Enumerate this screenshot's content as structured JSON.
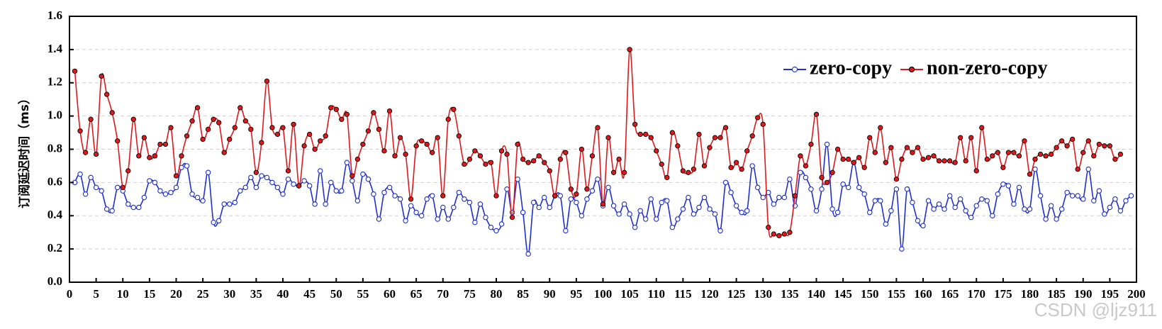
{
  "chart_data": {
    "type": "line",
    "ylabel": "订阅延迟时间（ms）",
    "xlabel": "",
    "xlim": [
      0,
      200
    ],
    "ylim": [
      0.0,
      1.6
    ],
    "xticks": [
      0,
      5,
      10,
      15,
      20,
      25,
      30,
      35,
      40,
      45,
      50,
      55,
      60,
      65,
      70,
      75,
      80,
      85,
      90,
      95,
      100,
      105,
      110,
      115,
      120,
      125,
      130,
      135,
      140,
      145,
      150,
      155,
      160,
      165,
      170,
      175,
      180,
      185,
      190,
      195,
      200
    ],
    "yticks": [
      "0.0",
      "0.2",
      "0.4",
      "0.6",
      "0.8",
      "1.0",
      "1.2",
      "1.4",
      "1.6"
    ],
    "grid": "horizontal dashed",
    "legend_position": "top-right",
    "series": [
      {
        "name": "zero-copy",
        "color": "#1f2fd1",
        "marker": "open-circle",
        "values": [
          0.6,
          0.65,
          0.53,
          0.63,
          0.57,
          0.55,
          0.44,
          0.43,
          0.57,
          0.55,
          0.47,
          0.45,
          0.45,
          0.51,
          0.61,
          0.6,
          0.55,
          0.53,
          0.54,
          0.57,
          0.69,
          0.7,
          0.53,
          0.51,
          0.49,
          0.66,
          0.36,
          0.37,
          0.47,
          0.47,
          0.48,
          0.55,
          0.57,
          0.63,
          0.57,
          0.64,
          0.63,
          0.6,
          0.57,
          0.53,
          0.62,
          0.59,
          0.58,
          0.61,
          0.58,
          0.47,
          0.67,
          0.47,
          0.6,
          0.55,
          0.55,
          0.72,
          0.61,
          0.49,
          0.65,
          0.62,
          0.53,
          0.38,
          0.54,
          0.57,
          0.52,
          0.5,
          0.37,
          0.46,
          0.42,
          0.4,
          0.5,
          0.52,
          0.38,
          0.45,
          0.38,
          0.45,
          0.54,
          0.5,
          0.48,
          0.36,
          0.47,
          0.39,
          0.33,
          0.31,
          0.35,
          0.56,
          0.42,
          0.62,
          0.42,
          0.17,
          0.48,
          0.45,
          0.51,
          0.45,
          0.52,
          0.52,
          0.31,
          0.5,
          0.48,
          0.4,
          0.5,
          0.55,
          0.62,
          0.46,
          0.57,
          0.46,
          0.41,
          0.47,
          0.41,
          0.33,
          0.43,
          0.38,
          0.5,
          0.38,
          0.48,
          0.49,
          0.33,
          0.38,
          0.44,
          0.51,
          0.41,
          0.45,
          0.51,
          0.44,
          0.41,
          0.31,
          0.6,
          0.54,
          0.46,
          0.42,
          0.43,
          0.7,
          0.57,
          0.51,
          0.54,
          0.47,
          0.51,
          0.51,
          0.62,
          0.46,
          0.66,
          0.63,
          0.56,
          0.43,
          0.56,
          0.83,
          0.44,
          0.42,
          0.59,
          0.57,
          0.72,
          0.57,
          0.53,
          0.42,
          0.49,
          0.49,
          0.35,
          0.43,
          0.56,
          0.2,
          0.56,
          0.48,
          0.37,
          0.34,
          0.49,
          0.44,
          0.47,
          0.44,
          0.52,
          0.45,
          0.5,
          0.43,
          0.39,
          0.46,
          0.5,
          0.49,
          0.4,
          0.53,
          0.59,
          0.58,
          0.47,
          0.57,
          0.44,
          0.44,
          0.68,
          0.52,
          0.38,
          0.46,
          0.38,
          0.44,
          0.54,
          0.52,
          0.52,
          0.5,
          0.68,
          0.49,
          0.55,
          0.41,
          0.45,
          0.5,
          0.43,
          0.49,
          0.52
        ]
      },
      {
        "name": "non-zero-copy",
        "color": "#e0181b",
        "marker": "filled-circle",
        "values": [
          1.27,
          0.91,
          0.78,
          0.98,
          0.77,
          1.24,
          1.13,
          1.02,
          0.85,
          0.57,
          0.67,
          0.98,
          0.76,
          0.87,
          0.75,
          0.76,
          0.83,
          0.83,
          0.93,
          0.64,
          0.76,
          0.88,
          0.97,
          1.05,
          0.86,
          0.92,
          0.98,
          0.96,
          0.78,
          0.86,
          0.93,
          1.05,
          0.97,
          0.92,
          0.66,
          0.84,
          1.21,
          0.93,
          0.89,
          0.93,
          0.67,
          0.95,
          0.58,
          0.82,
          0.89,
          0.8,
          0.85,
          0.88,
          1.05,
          1.04,
          0.98,
          1.01,
          0.64,
          0.74,
          0.83,
          0.91,
          1.02,
          0.92,
          0.79,
          1.03,
          0.76,
          0.87,
          0.77,
          0.5,
          0.82,
          0.85,
          0.83,
          0.78,
          0.87,
          0.52,
          0.98,
          1.04,
          0.88,
          0.71,
          0.74,
          0.79,
          0.76,
          0.71,
          0.72,
          0.52,
          0.79,
          0.77,
          0.39,
          0.83,
          0.74,
          0.72,
          0.73,
          0.76,
          0.72,
          0.67,
          0.52,
          0.74,
          0.78,
          0.56,
          0.53,
          0.8,
          0.56,
          0.76,
          0.93,
          0.47,
          0.87,
          0.66,
          0.74,
          0.66,
          1.4,
          0.95,
          0.89,
          0.89,
          0.87,
          0.79,
          0.71,
          0.63,
          0.9,
          0.82,
          0.67,
          0.66,
          0.68,
          0.89,
          0.7,
          0.81,
          0.87,
          0.87,
          0.93,
          0.69,
          0.72,
          0.68,
          0.79,
          0.88,
          0.99,
          0.95,
          0.33,
          0.29,
          0.28,
          0.29,
          0.3,
          0.52,
          0.76,
          0.7,
          0.83,
          1.01,
          0.63,
          0.6,
          0.66,
          0.8,
          0.74,
          0.74,
          0.72,
          0.75,
          0.69,
          0.87,
          0.78,
          0.93,
          0.72,
          0.81,
          0.62,
          0.74,
          0.81,
          0.78,
          0.81,
          0.74,
          0.75,
          0.76,
          0.73,
          0.73,
          0.73,
          0.72,
          0.87,
          0.73,
          0.87,
          0.67,
          0.93,
          0.74,
          0.76,
          0.78,
          0.69,
          0.78,
          0.78,
          0.76,
          0.85,
          0.65,
          0.74,
          0.77,
          0.76,
          0.77,
          0.81,
          0.85,
          0.82,
          0.86,
          0.68,
          0.78,
          0.85,
          0.76,
          0.83,
          0.82,
          0.82,
          0.74,
          0.77
        ]
      }
    ],
    "watermark": "CSDN @ljz911"
  }
}
